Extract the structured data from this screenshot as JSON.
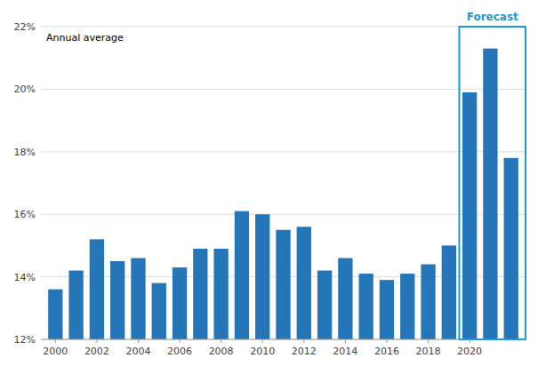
{
  "chart_data": {
    "type": "bar",
    "x": [
      2000,
      2001,
      2002,
      2003,
      2004,
      2005,
      2006,
      2007,
      2008,
      2009,
      2010,
      2011,
      2012,
      2013,
      2014,
      2015,
      2016,
      2017,
      2018,
      2019,
      2020,
      2021,
      2022
    ],
    "values": [
      13.6,
      14.2,
      15.2,
      14.5,
      14.6,
      13.8,
      14.3,
      14.9,
      14.9,
      16.1,
      16.0,
      15.5,
      15.6,
      14.2,
      14.6,
      14.1,
      13.9,
      14.1,
      14.4,
      15.0,
      19.9,
      21.3,
      17.8
    ],
    "color": "#2576b8",
    "xlim": [
      1999.3,
      2022.7
    ],
    "xticks": [
      2000,
      2002,
      2004,
      2006,
      2008,
      2010,
      2012,
      2014,
      2016,
      2018,
      2020
    ],
    "ylim": [
      12,
      22
    ],
    "yticks": [
      {
        "value": 12,
        "label": "12%"
      },
      {
        "value": 14,
        "label": "14%"
      },
      {
        "value": 16,
        "label": "16%"
      },
      {
        "value": 18,
        "label": "18%"
      },
      {
        "value": 20,
        "label": "20%"
      },
      {
        "value": 22,
        "label": "22%"
      }
    ],
    "grid": true,
    "annotations": [
      {
        "text": "Annual average"
      },
      {
        "text": "Forecast",
        "x_from": 2020,
        "color": "#2098d1"
      }
    ]
  }
}
